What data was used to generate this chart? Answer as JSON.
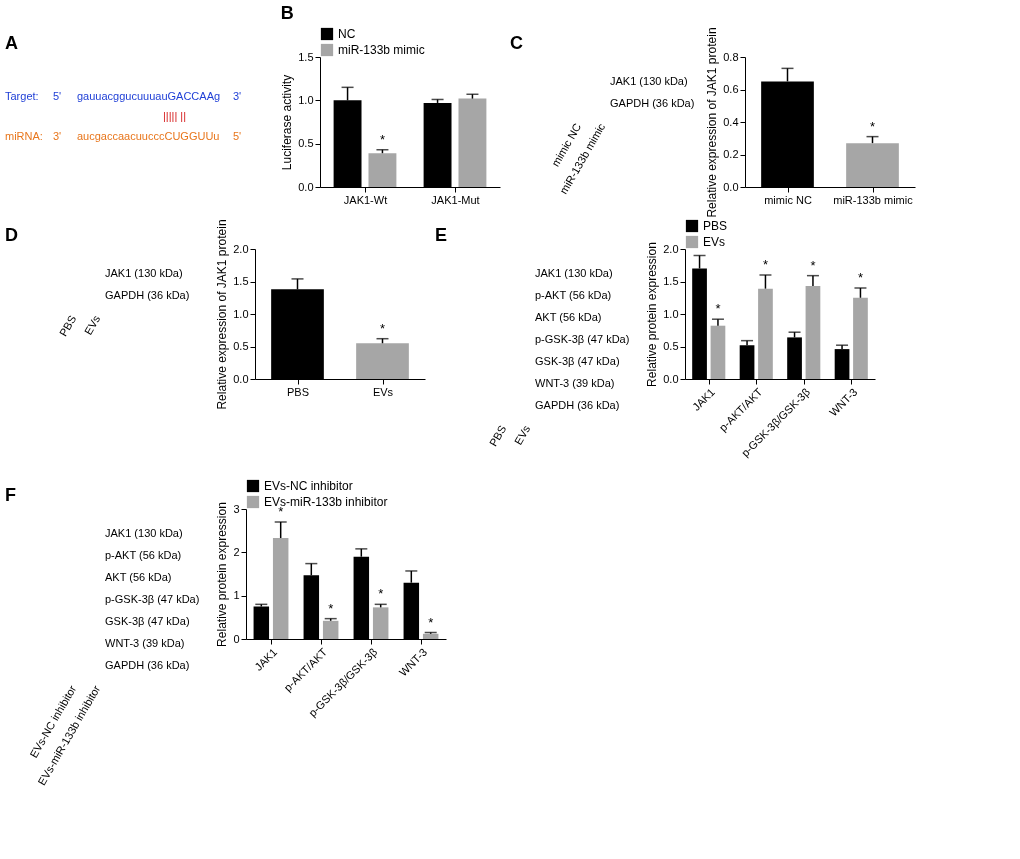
{
  "chart_data": [
    {
      "type": "other",
      "title": "A",
      "annotations": [
        "Target:",
        "5'",
        "gauuacggucuuuauGACCAAg",
        "3'",
        "|||||   ||",
        "miRNA:",
        "3'",
        "aucgaccaacuucccCUGGUUu",
        "5'"
      ],
      "colors": [
        "#1f3fd6",
        "#1f3fd6",
        "#1f3fd6",
        "#1f3fd6",
        "#d62020",
        "#e8761c",
        "#e8761c",
        "#e8761c",
        "#e8761c"
      ]
    },
    {
      "type": "bar",
      "title": "B",
      "ylabel": "Luciferase activity",
      "categories": [
        "JAK1-Wt",
        "JAK1-Mut"
      ],
      "ylim": [
        0,
        1.5
      ],
      "yticks": [
        {
          "value": 0,
          "label": "0.0"
        },
        {
          "value": 0.5,
          "label": "0.5"
        },
        {
          "value": 1.0,
          "label": "1.0"
        },
        {
          "value": 1.5,
          "label": "1.5"
        }
      ],
      "legend": "top",
      "series": [
        {
          "name": "NC",
          "color": "#000000",
          "values": [
            1.0,
            0.97
          ],
          "errors": [
            [
              1.0,
              1.15
            ],
            [
              0.97,
              1.01
            ]
          ],
          "value_labels": [
            null,
            null
          ]
        },
        {
          "name": "miR-133b mimic",
          "color": "#a6a6a6",
          "values": [
            0.39,
            1.02
          ],
          "errors": [
            [
              0.39,
              0.43
            ],
            [
              1.02,
              1.07
            ]
          ],
          "value_labels": [
            "*",
            null
          ]
        }
      ]
    },
    {
      "type": "other",
      "title": "C",
      "annotations": [
        "JAK1 (130 kDa)",
        "GAPDH (36 kDa)"
      ],
      "categories": [
        "mimic NC",
        "miR-133b mimic"
      ]
    },
    {
      "type": "bar",
      "ylabel": "Relative expression of JAK1 protein",
      "categories": [
        "mimic NC",
        "miR-133b mimic"
      ],
      "ylim": [
        0,
        0.8
      ],
      "yticks": [
        {
          "value": 0,
          "label": "0.0"
        },
        0.2,
        0.4,
        0.6,
        0.8
      ],
      "values": [
        0.65,
        0.27
      ],
      "colors": [
        "#000000",
        "#a6a6a6"
      ],
      "errors": [
        [
          0.65,
          0.73
        ],
        [
          0.27,
          0.31
        ]
      ],
      "value_labels": [
        null,
        "*"
      ]
    },
    {
      "type": "other",
      "title": "D",
      "annotations": [
        "JAK1 (130 kDa)",
        "GAPDH (36 kDa)"
      ],
      "categories": [
        "PBS",
        "EVs"
      ]
    },
    {
      "type": "bar",
      "ylabel": "Relative expression of JAK1 protein",
      "categories": [
        "PBS",
        "EVs"
      ],
      "ylim": [
        0,
        2.0
      ],
      "yticks": [
        {
          "value": 0,
          "label": "0.0"
        },
        0.5,
        {
          "value": 1.0,
          "label": "1.0"
        },
        1.5,
        {
          "value": 2.0,
          "label": "2.0"
        }
      ],
      "values": [
        1.38,
        0.55
      ],
      "colors": [
        "#000000",
        "#a6a6a6"
      ],
      "errors": [
        [
          1.38,
          1.54
        ],
        [
          0.55,
          0.62
        ]
      ],
      "value_labels": [
        null,
        "*"
      ]
    },
    {
      "type": "other",
      "title": "E",
      "annotations": [
        "JAK1 (130 kDa)",
        "p-AKT (56 kDa)",
        "AKT (56 kDa)",
        "p-GSK-3β (47 kDa)",
        "GSK-3β (47 kDa)",
        "WNT-3 (39 kDa)",
        "GAPDH (36 kDa)"
      ],
      "categories": [
        "PBS",
        "EVs"
      ]
    },
    {
      "type": "bar",
      "ylabel": "Relative protein expression",
      "categories": [
        "JAK1",
        "p-AKT/AKT",
        "p-GSK-3β/GSK-3β",
        "WNT-3"
      ],
      "ylim": [
        0,
        2.0
      ],
      "yticks": [
        {
          "value": 0,
          "label": "0.0"
        },
        0.5,
        {
          "value": 1.0,
          "label": "1.0"
        },
        1.5,
        {
          "value": 2.0,
          "label": "2.0"
        }
      ],
      "legend": "top",
      "series": [
        {
          "name": "PBS",
          "color": "#000000",
          "values": [
            1.7,
            0.52,
            0.64,
            0.46
          ],
          "errors": [
            [
              1.7,
              1.9
            ],
            [
              0.52,
              0.59
            ],
            [
              0.64,
              0.72
            ],
            [
              0.46,
              0.52
            ]
          ],
          "value_labels": [
            null,
            null,
            null,
            null
          ]
        },
        {
          "name": "EVs",
          "color": "#a6a6a6",
          "values": [
            0.82,
            1.39,
            1.43,
            1.25
          ],
          "errors": [
            [
              0.82,
              0.92
            ],
            [
              1.39,
              1.6
            ],
            [
              1.43,
              1.59
            ],
            [
              1.25,
              1.4
            ]
          ],
          "value_labels": [
            "*",
            "*",
            "*",
            "*"
          ]
        }
      ]
    },
    {
      "type": "other",
      "title": "F",
      "annotations": [
        "JAK1 (130 kDa)",
        "p-AKT (56 kDa)",
        "AKT (56 kDa)",
        "p-GSK-3β (47 kDa)",
        "GSK-3β (47 kDa)",
        "WNT-3 (39 kDa)",
        "GAPDH (36 kDa)"
      ],
      "categories": [
        "EVs-NC inhibitor",
        "EVs-miR-133b inhibitor"
      ]
    },
    {
      "type": "bar",
      "ylabel": "Relative protein expression",
      "categories": [
        "JAK1",
        "p-AKT/AKT",
        "p-GSK-3β/GSK-3β",
        "WNT-3"
      ],
      "ylim": [
        0,
        3
      ],
      "yticks": [
        0,
        1,
        2,
        3
      ],
      "legend": "top",
      "series": [
        {
          "name": "EVs-NC inhibitor",
          "color": "#000000",
          "values": [
            0.75,
            1.47,
            1.9,
            1.3
          ],
          "errors": [
            [
              0.75,
              0.8
            ],
            [
              1.47,
              1.74
            ],
            [
              1.9,
              2.08
            ],
            [
              1.3,
              1.57
            ]
          ],
          "value_labels": [
            null,
            null,
            null,
            null
          ]
        },
        {
          "name": "EVs-miR-133b inhibitor",
          "color": "#a6a6a6",
          "values": [
            2.33,
            0.42,
            0.73,
            0.12
          ],
          "errors": [
            [
              2.33,
              2.7
            ],
            [
              0.42,
              0.47
            ],
            [
              0.73,
              0.8
            ],
            [
              0.12,
              0.15
            ]
          ],
          "value_labels": [
            "*",
            "*",
            "*",
            "*"
          ]
        }
      ]
    }
  ]
}
